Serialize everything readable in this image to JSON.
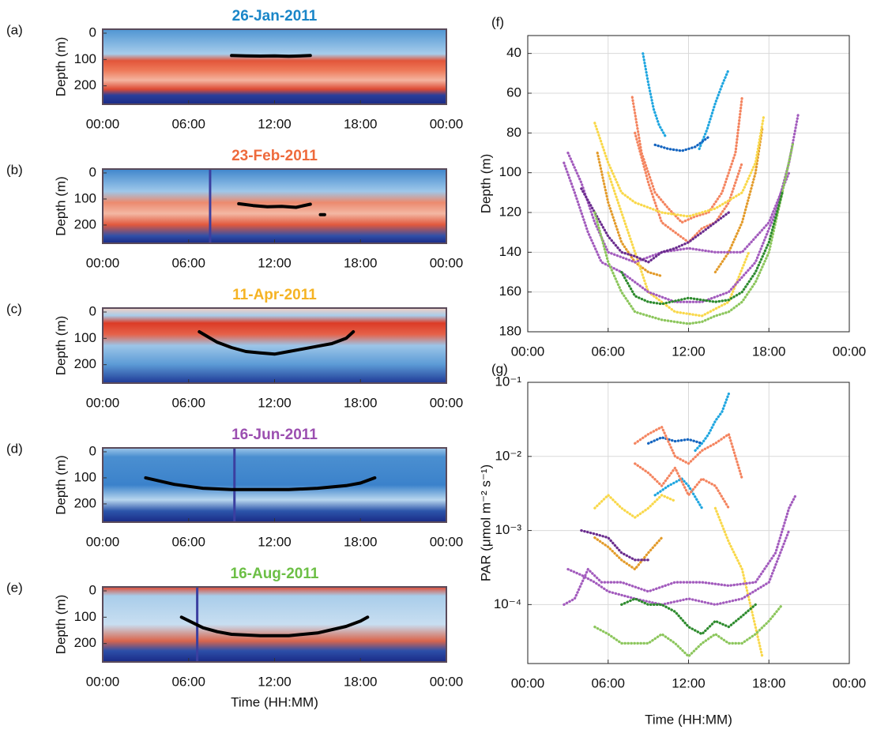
{
  "chart_data": [
    {
      "type": "line",
      "panel_label": "(a)",
      "title": "26-Jan-2011",
      "title_color": "#1a86c8",
      "ylabel": "Depth (m)",
      "xlim": [
        0,
        24
      ],
      "ylim": [
        -15,
        270
      ],
      "y_inverted": true,
      "xticks": [
        {
          "value": 0,
          "label": "00:00"
        },
        {
          "value": 6,
          "label": "06:00"
        },
        {
          "value": 12,
          "label": "12:00"
        },
        {
          "value": 18,
          "label": "18:00"
        },
        {
          "value": 24,
          "label": "00:00"
        }
      ],
      "yticks": [
        0,
        100,
        200
      ],
      "series": [
        {
          "color": "#000000",
          "x": [
            9,
            10,
            11,
            12,
            13,
            14.5
          ],
          "values": [
            85,
            86,
            87,
            86,
            88,
            85
          ]
        }
      ]
    },
    {
      "type": "line",
      "panel_label": "(b)",
      "title": "23-Feb-2011",
      "title_color": "#ee6a3c",
      "ylabel": "Depth (m)",
      "xlim": [
        0,
        24
      ],
      "ylim": [
        -15,
        270
      ],
      "y_inverted": true,
      "xticks": [
        {
          "value": 0,
          "label": "00:00"
        },
        {
          "value": 6,
          "label": "06:00"
        },
        {
          "value": 12,
          "label": "12:00"
        },
        {
          "value": 18,
          "label": "18:00"
        },
        {
          "value": 24,
          "label": "00:00"
        }
      ],
      "yticks": [
        0,
        100,
        200
      ],
      "vline": 7.5,
      "vline_color": "#3b3fa0",
      "series": [
        {
          "color": "#000000",
          "x": [
            9.5,
            10.5,
            11.5,
            12.5,
            13.5,
            14.5,
            null,
            15.2,
            15.5
          ],
          "values": [
            118,
            125,
            130,
            128,
            132,
            120,
            null,
            160,
            160
          ]
        }
      ]
    },
    {
      "type": "line",
      "panel_label": "(c)",
      "title": "11-Apr-2011",
      "title_color": "#f5b324",
      "ylabel": "Depth (m)",
      "xlim": [
        0,
        24
      ],
      "ylim": [
        -15,
        270
      ],
      "y_inverted": true,
      "xticks": [
        {
          "value": 0,
          "label": "00:00"
        },
        {
          "value": 6,
          "label": "06:00"
        },
        {
          "value": 12,
          "label": "12:00"
        },
        {
          "value": 18,
          "label": "18:00"
        },
        {
          "value": 24,
          "label": "00:00"
        }
      ],
      "yticks": [
        0,
        100,
        200
      ],
      "series": [
        {
          "color": "#000000",
          "x": [
            6.75,
            8,
            9,
            10,
            11,
            12,
            13,
            14,
            15,
            16,
            17,
            17.5
          ],
          "values": [
            75,
            115,
            135,
            150,
            155,
            160,
            150,
            140,
            130,
            120,
            100,
            75
          ]
        }
      ]
    },
    {
      "type": "line",
      "panel_label": "(d)",
      "title": "16-Jun-2011",
      "title_color": "#9b4fb0",
      "ylabel": "Depth (m)",
      "xlim": [
        0,
        24
      ],
      "ylim": [
        -15,
        270
      ],
      "y_inverted": true,
      "xticks": [
        {
          "value": 0,
          "label": "00:00"
        },
        {
          "value": 6,
          "label": "06:00"
        },
        {
          "value": 12,
          "label": "12:00"
        },
        {
          "value": 18,
          "label": "18:00"
        },
        {
          "value": 24,
          "label": "00:00"
        }
      ],
      "yticks": [
        0,
        100,
        200
      ],
      "vline": 9.2,
      "vline_color": "#3b3fa0",
      "series": [
        {
          "color": "#000000",
          "x": [
            3,
            5,
            7,
            9,
            11,
            13,
            15,
            17,
            18,
            19
          ],
          "values": [
            100,
            125,
            140,
            145,
            145,
            145,
            140,
            130,
            120,
            100
          ]
        }
      ]
    },
    {
      "type": "line",
      "panel_label": "(e)",
      "title": "16-Aug-2011",
      "title_color": "#6cbf45",
      "ylabel": "Depth (m)",
      "xlabel": "Time (HH:MM)",
      "xlim": [
        0,
        24
      ],
      "ylim": [
        -15,
        270
      ],
      "y_inverted": true,
      "xticks": [
        {
          "value": 0,
          "label": "00:00"
        },
        {
          "value": 6,
          "label": "06:00"
        },
        {
          "value": 12,
          "label": "12:00"
        },
        {
          "value": 18,
          "label": "18:00"
        },
        {
          "value": 24,
          "label": "00:00"
        }
      ],
      "yticks": [
        0,
        100,
        200
      ],
      "vline": 6.6,
      "vline_color": "#3b3fa0",
      "series": [
        {
          "color": "#000000",
          "x": [
            5.5,
            7,
            8,
            9,
            11,
            13,
            15,
            17,
            18,
            18.5
          ],
          "values": [
            100,
            140,
            155,
            165,
            170,
            170,
            160,
            135,
            115,
            100
          ]
        }
      ]
    },
    {
      "type": "line",
      "panel_label": "(f)",
      "ylabel": "Depth (m)",
      "line_style": "dotted",
      "grid": true,
      "xlim": [
        0,
        24
      ],
      "ylim": [
        31,
        180
      ],
      "y_inverted": true,
      "xticks": [
        {
          "value": 0,
          "label": "00:00"
        },
        {
          "value": 6,
          "label": "06:00"
        },
        {
          "value": 12,
          "label": "12:00"
        },
        {
          "value": 18,
          "label": "18:00"
        },
        {
          "value": 24,
          "label": "00:00"
        }
      ],
      "yticks": [
        40,
        60,
        80,
        100,
        120,
        140,
        160,
        180
      ],
      "series": [
        {
          "color": "#1fa6e0",
          "x": [
            8.6,
            9.0,
            9.4,
            9.8,
            10.3
          ],
          "values": [
            40,
            55,
            68,
            76,
            82
          ]
        },
        {
          "color": "#1fa6e0",
          "x": [
            12.8,
            13.4,
            14.0,
            14.5,
            15.0
          ],
          "values": [
            88,
            78,
            65,
            56,
            48
          ]
        },
        {
          "color": "#1565c0",
          "x": [
            9.5,
            10.5,
            11.5,
            12.5,
            13.5
          ],
          "values": [
            86,
            88,
            89,
            87,
            82
          ]
        },
        {
          "color": "#f4845f",
          "x": [
            7.8,
            8.5,
            9.5,
            10.5,
            11.5,
            12.5,
            13.5,
            14.5,
            15.5,
            16.0
          ],
          "values": [
            62,
            90,
            110,
            118,
            125,
            122,
            120,
            110,
            90,
            62
          ]
        },
        {
          "color": "#f4845f",
          "x": [
            8,
            9,
            10,
            11,
            12,
            13,
            14,
            15,
            16
          ],
          "values": [
            80,
            105,
            125,
            130,
            135,
            128,
            125,
            115,
            95
          ]
        },
        {
          "color": "#e39b2a",
          "x": [
            5.2,
            6,
            7,
            8,
            9,
            10
          ],
          "values": [
            90,
            115,
            135,
            145,
            150,
            152
          ]
        },
        {
          "color": "#e39b2a",
          "x": [
            14,
            15,
            16,
            17,
            17.5
          ],
          "values": [
            150,
            140,
            125,
            100,
            78
          ]
        },
        {
          "color": "#f9d84a",
          "x": [
            5,
            6,
            7,
            8,
            10,
            12,
            14,
            16,
            17,
            17.6
          ],
          "values": [
            75,
            95,
            110,
            115,
            120,
            122,
            118,
            110,
            95,
            72
          ]
        },
        {
          "color": "#f9d84a",
          "x": [
            6,
            7,
            8,
            9,
            11,
            13,
            15,
            16.5
          ],
          "values": [
            100,
            120,
            140,
            160,
            170,
            172,
            165,
            140
          ]
        },
        {
          "color": "#a25bbd",
          "x": [
            2.7,
            3.5,
            4.5,
            5.5,
            7,
            9,
            11,
            13,
            15,
            17,
            18.5,
            19.5,
            20.2
          ],
          "values": [
            95,
            110,
            130,
            145,
            150,
            160,
            165,
            165,
            160,
            145,
            120,
            95,
            70
          ]
        },
        {
          "color": "#a25bbd",
          "x": [
            3,
            4,
            5,
            6,
            8,
            10,
            12,
            14,
            16,
            18,
            19.5
          ],
          "values": [
            90,
            105,
            125,
            140,
            145,
            140,
            138,
            140,
            140,
            125,
            100
          ]
        },
        {
          "color": "#6a2c8e",
          "x": [
            4,
            5,
            6,
            7,
            8,
            9,
            10,
            11,
            12,
            13,
            14,
            15
          ],
          "values": [
            108,
            120,
            132,
            140,
            142,
            145,
            140,
            138,
            135,
            130,
            125,
            120
          ]
        },
        {
          "color": "#8cc65c",
          "x": [
            5,
            6,
            7,
            8,
            9,
            10,
            11,
            12,
            13,
            14,
            15,
            16,
            17,
            18,
            19,
            19.8
          ],
          "values": [
            120,
            145,
            160,
            170,
            172,
            174,
            175,
            176,
            175,
            172,
            170,
            165,
            155,
            140,
            110,
            85
          ]
        },
        {
          "color": "#2e8b2e",
          "x": [
            7,
            8,
            9,
            10,
            12,
            14,
            15,
            16,
            17,
            18,
            19
          ],
          "values": [
            150,
            162,
            165,
            166,
            163,
            165,
            164,
            160,
            150,
            135,
            110
          ]
        }
      ]
    },
    {
      "type": "line",
      "panel_label": "(g)",
      "ylabel": "PAR (μmol m⁻² s⁻¹)",
      "xlabel": "Time (HH:MM)",
      "line_style": "dotted",
      "grid": true,
      "log_y": true,
      "xlim": [
        0,
        24
      ],
      "ylim": [
        1.6e-05,
        0.1
      ],
      "xticks": [
        {
          "value": 0,
          "label": "00:00"
        },
        {
          "value": 6,
          "label": "06:00"
        },
        {
          "value": 12,
          "label": "12:00"
        },
        {
          "value": 18,
          "label": "18:00"
        },
        {
          "value": 24,
          "label": "00:00"
        }
      ],
      "yticks": [
        {
          "value": 0.0001,
          "label": "10⁻⁴"
        },
        {
          "value": 0.001,
          "label": "10⁻³"
        },
        {
          "value": 0.01,
          "label": "10⁻²"
        },
        {
          "value": 0.1,
          "label": "10⁻¹"
        }
      ],
      "series": [
        {
          "color": "#1fa6e0",
          "x": [
            12.5,
            13,
            13.5,
            14,
            14.5,
            15
          ],
          "values": [
            0.012,
            0.015,
            0.02,
            0.03,
            0.04,
            0.07
          ]
        },
        {
          "color": "#1fa6e0",
          "x": [
            9.5,
            10.5,
            11.5,
            12,
            13
          ],
          "values": [
            0.003,
            0.004,
            0.005,
            0.004,
            0.002
          ]
        },
        {
          "color": "#1565c0",
          "x": [
            9,
            10,
            11,
            12,
            13
          ],
          "values": [
            0.015,
            0.018,
            0.016,
            0.017,
            0.015
          ]
        },
        {
          "color": "#f4845f",
          "x": [
            8,
            9,
            10,
            11,
            12,
            13,
            14,
            15,
            16
          ],
          "values": [
            0.015,
            0.02,
            0.025,
            0.01,
            0.008,
            0.012,
            0.015,
            0.02,
            0.005
          ]
        },
        {
          "color": "#f4845f",
          "x": [
            8,
            9,
            10,
            11,
            12,
            13,
            14,
            15
          ],
          "values": [
            0.008,
            0.006,
            0.004,
            0.007,
            0.003,
            0.005,
            0.004,
            0.002
          ]
        },
        {
          "color": "#e39b2a",
          "x": [
            5,
            6,
            7,
            8,
            9,
            10
          ],
          "values": [
            0.0008,
            0.0006,
            0.0004,
            0.0003,
            0.0005,
            0.0008
          ]
        },
        {
          "color": "#f9d84a",
          "x": [
            5,
            6,
            7,
            8,
            9,
            10,
            11
          ],
          "values": [
            0.002,
            0.003,
            0.002,
            0.0015,
            0.002,
            0.003,
            0.0025
          ]
        },
        {
          "color": "#f9d84a",
          "x": [
            14,
            15,
            16,
            17,
            17.5
          ],
          "values": [
            0.002,
            0.0007,
            0.0003,
            5e-05,
            2e-05
          ]
        },
        {
          "color": "#a25bbd",
          "x": [
            2.7,
            3.5,
            4.5,
            5.5,
            7,
            9,
            11,
            13,
            15,
            17,
            18.5,
            19.5,
            20
          ],
          "values": [
            0.0001,
            0.00012,
            0.0003,
            0.0002,
            0.0002,
            0.00015,
            0.0002,
            0.0002,
            0.00018,
            0.0002,
            0.0005,
            0.002,
            0.003
          ]
        },
        {
          "color": "#a25bbd",
          "x": [
            3,
            4,
            5,
            6,
            8,
            10,
            12,
            14,
            16,
            18,
            19.5
          ],
          "values": [
            0.0003,
            0.00025,
            0.0002,
            0.00015,
            0.00012,
            0.0001,
            0.00012,
            0.0001,
            0.00012,
            0.0002,
            0.001
          ]
        },
        {
          "color": "#6a2c8e",
          "x": [
            4,
            5,
            6,
            7,
            8,
            9
          ],
          "values": [
            0.001,
            0.0009,
            0.0008,
            0.0005,
            0.0004,
            0.0004
          ]
        },
        {
          "color": "#8cc65c",
          "x": [
            5,
            6,
            7,
            8,
            9,
            10,
            11,
            12,
            13,
            14,
            15,
            16,
            17,
            18,
            19
          ],
          "values": [
            5e-05,
            4e-05,
            3e-05,
            3e-05,
            3e-05,
            4e-05,
            3e-05,
            2e-05,
            3e-05,
            4e-05,
            3e-05,
            3e-05,
            4e-05,
            6e-05,
            0.0001
          ]
        },
        {
          "color": "#2e8b2e",
          "x": [
            7,
            8,
            9,
            10,
            11,
            12,
            13,
            14,
            15,
            16,
            17
          ],
          "values": [
            0.0001,
            0.00012,
            0.0001,
            0.0001,
            8e-05,
            5e-05,
            4e-05,
            6e-05,
            5e-05,
            7e-05,
            0.0001
          ]
        }
      ]
    }
  ]
}
